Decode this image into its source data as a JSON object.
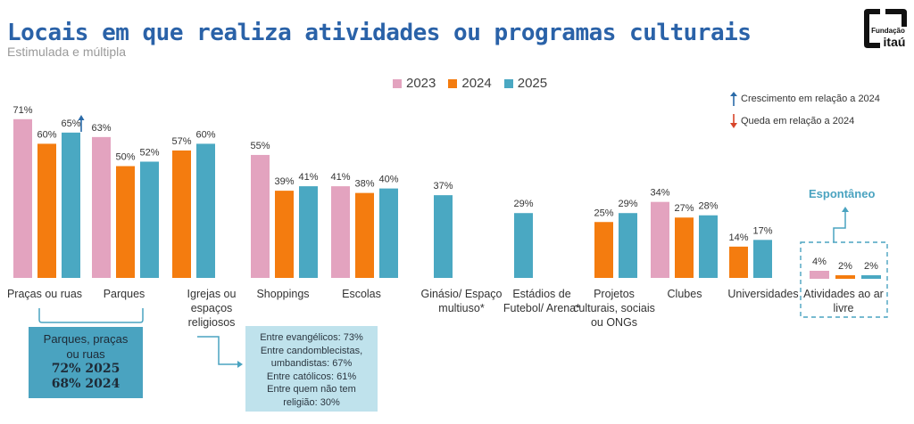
{
  "header": {
    "title": "Locais em que realiza atividades ou programas culturais",
    "subtitle": "Estimulada e múltipla",
    "logo_text_top": "Fundação",
    "logo_text_bottom": "itaú"
  },
  "legend": {
    "items": [
      {
        "label": "2023",
        "color": "#e3a3bf"
      },
      {
        "label": "2024",
        "color": "#f47c0f"
      },
      {
        "label": "2025",
        "color": "#4aa8c2"
      }
    ],
    "arrows": {
      "up_label": "Crescimento em relação a 2024",
      "up_color": "#2a6aa8",
      "down_label": "Queda em relação a 2024",
      "down_color": "#d7442a"
    }
  },
  "chart_data": {
    "type": "bar",
    "title": "Locais em que realiza atividades ou programas culturais",
    "subtitle": "Estimulada e múltipla",
    "xlabel": "",
    "ylabel": "",
    "ylim": [
      0,
      75
    ],
    "grid": false,
    "legend_position": "top-center",
    "categories": [
      "Praças ou ruas",
      "Parques",
      "Igrejas ou espaços religiosos",
      "Shoppings",
      "Escolas",
      "Ginásio/ Espaço multiuso*",
      "Estádios de Futebol/ Arena*",
      "Projetos culturais, sociais ou ONGs",
      "Clubes",
      "Universidades",
      "Atividades ao ar livre"
    ],
    "series": [
      {
        "name": "2023",
        "color": "#e3a3bf",
        "values": [
          71,
          63,
          null,
          55,
          41,
          null,
          null,
          null,
          34,
          null,
          4
        ]
      },
      {
        "name": "2024",
        "color": "#f47c0f",
        "values": [
          60,
          50,
          57,
          39,
          38,
          null,
          null,
          25,
          27,
          14,
          2
        ]
      },
      {
        "name": "2025",
        "color": "#4aa8c2",
        "values": [
          65,
          52,
          60,
          41,
          40,
          37,
          29,
          29,
          28,
          17,
          2
        ]
      }
    ],
    "value_labels": [
      [
        "71%",
        "60%",
        "65%"
      ],
      [
        "63%",
        "50%",
        "52%"
      ],
      [
        null,
        "57%",
        "60%"
      ],
      [
        "55%",
        "39%",
        "41%"
      ],
      [
        "41%",
        "38%",
        "40%"
      ],
      [
        null,
        null,
        "37%"
      ],
      [
        null,
        null,
        "29%"
      ],
      [
        null,
        "25%",
        "29%"
      ],
      [
        "34%",
        "27%",
        "28%"
      ],
      [
        null,
        "14%",
        "17%"
      ],
      [
        "4%",
        "2%",
        "2%"
      ]
    ],
    "annotations": [
      {
        "type": "growth-arrow",
        "category": "Praças ou ruas",
        "series": "2025",
        "direction": "up"
      },
      {
        "type": "callout",
        "text": "Espontâneo",
        "category": "Atividades ao ar livre"
      }
    ]
  },
  "category_labels": [
    [
      "Praças ou ruas"
    ],
    [
      "Parques"
    ],
    [
      "Igrejas ou",
      "espaços",
      "religiosos"
    ],
    [
      "Shoppings"
    ],
    [
      "Escolas"
    ],
    [
      "Ginásio/ Espaço",
      "multiuso*"
    ],
    [
      "Estádios de",
      "Futebol/ Arena*"
    ],
    [
      "Projetos",
      "culturais, sociais",
      "ou ONGs"
    ],
    [
      "Clubes"
    ],
    [
      "Universidades"
    ],
    [
      "Atividades ao ar",
      "livre"
    ]
  ],
  "summary_box": {
    "line1": "Parques, praças",
    "line2": "ou ruas",
    "line3": "72% 2025",
    "line4": "68% 2024"
  },
  "religion_box": {
    "lines": [
      "Entre evangélicos: 73%",
      "Entre candomblecistas,",
      "umbandistas: 67%",
      "Entre católicos: 61%",
      "Entre quem não tem",
      "religião: 30%"
    ]
  },
  "spontaneous_label": "Espontâneo"
}
